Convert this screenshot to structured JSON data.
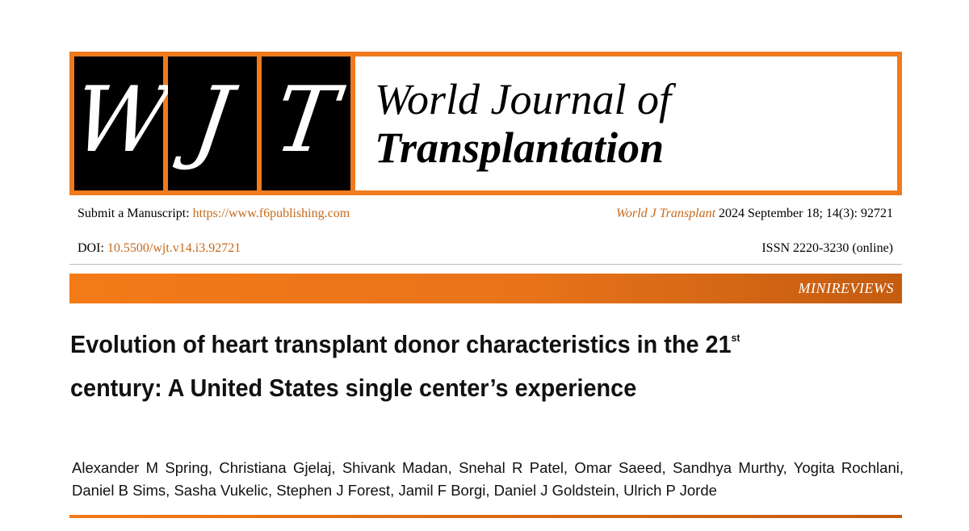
{
  "masthead": {
    "logo_letters": [
      "W",
      "J",
      "T"
    ],
    "journal_name_line1": "World Journal of",
    "journal_name_line2": "Transplantation"
  },
  "meta": {
    "submit_label": "Submit a Manuscript: ",
    "submit_url": "https://www.f6publishing.com",
    "journal_abbrev": "World J Transplant",
    "issue_info": " 2024 September 18; 14(3): 92721",
    "doi_label": "DOI: ",
    "doi_value": "10.5500/wjt.v14.i3.92721",
    "issn": "ISSN 2220-3230 (online)"
  },
  "category": "MINIREVIEWS",
  "article": {
    "title_part1": "Evolution of heart transplant donor characteristics in the 21",
    "title_sup": "st",
    "title_part2": "century: A United States single center’s experience",
    "authors": "Alexander M Spring, Christiana Gjelaj, Shivank Madan, Snehal R Patel, Omar Saeed, Sandhya Murthy, Yogita Rochlani, Daniel B Sims, Sasha Vukelic, Stephen J Forest, Jamil F Borgi, Daniel J Goldstein, Ulrich P Jorde"
  },
  "colors": {
    "accent": "#f07a1d",
    "link": "#c66a1b",
    "logo_bg": "#000000"
  }
}
